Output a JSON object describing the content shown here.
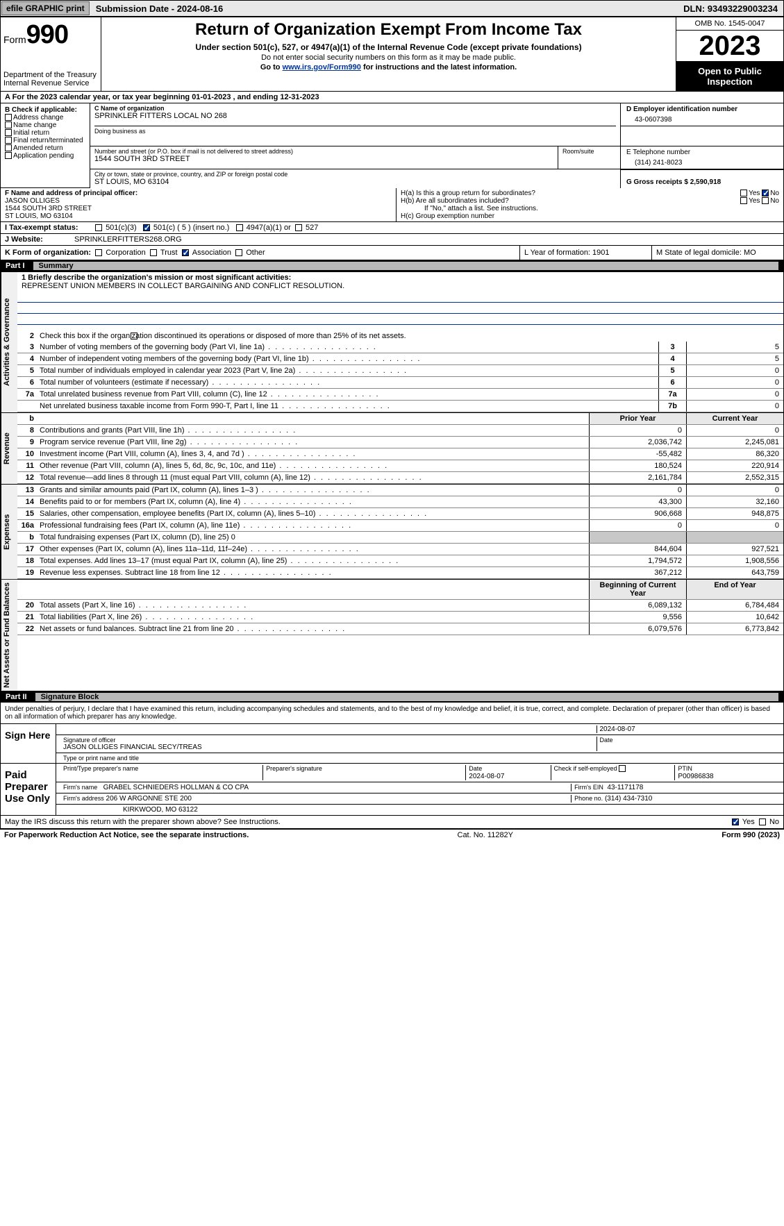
{
  "topbar": {
    "efile": "efile GRAPHIC print",
    "submission_label": "Submission Date - 2024-08-16",
    "dln_label": "DLN: 93493229003234"
  },
  "header": {
    "form_word": "Form",
    "form_number": "990",
    "dept": "Department of the Treasury",
    "irs": "Internal Revenue Service",
    "title": "Return of Organization Exempt From Income Tax",
    "subtitle": "Under section 501(c), 527, or 4947(a)(1) of the Internal Revenue Code (except private foundations)",
    "note1": "Do not enter social security numbers on this form as it may be made public.",
    "note2_pre": "Go to ",
    "note2_link": "www.irs.gov/Form990",
    "note2_post": " for instructions and the latest information.",
    "omb": "OMB No. 1545-0047",
    "year": "2023",
    "open": "Open to Public Inspection"
  },
  "section_a": "A For the 2023 calendar year, or tax year beginning 01-01-2023   , and ending 12-31-2023",
  "box_b": {
    "label": "B Check if applicable:",
    "items": [
      "Address change",
      "Name change",
      "Initial return",
      "Final return/terminated",
      "Amended return",
      "Application pending"
    ]
  },
  "box_c": {
    "name_label": "C Name of organization",
    "name": "SPRINKLER FITTERS LOCAL NO 268",
    "dba_label": "Doing business as",
    "street_label": "Number and street (or P.O. box if mail is not delivered to street address)",
    "room_label": "Room/suite",
    "street": "1544 SOUTH 3RD STREET",
    "city_label": "City or town, state or province, country, and ZIP or foreign postal code",
    "city": "ST LOUIS, MO  63104"
  },
  "box_d": {
    "label": "D Employer identification number",
    "value": "43-0607398"
  },
  "box_e": {
    "label": "E Telephone number",
    "value": "(314) 241-8023"
  },
  "box_g": {
    "label": "G Gross receipts $ 2,590,918"
  },
  "box_f": {
    "label": "F  Name and address of principal officer:",
    "line1": "JASON OLLIGES",
    "line2": "1544 SOUTH 3RD STREET",
    "line3": "ST LOUIS, MO  63104"
  },
  "box_h": {
    "ha": "H(a)  Is this a group return for subordinates?",
    "hb": "H(b)  Are all subordinates included?",
    "hb_note": "If \"No,\" attach a list. See instructions.",
    "hc": "H(c)  Group exemption number",
    "yes": "Yes",
    "no": "No"
  },
  "row_i": {
    "label": "I   Tax-exempt status:",
    "opt1": "501(c)(3)",
    "opt2": "501(c) ( 5 ) (insert no.)",
    "opt3": "4947(a)(1) or",
    "opt4": "527"
  },
  "row_j": {
    "label": "J   Website:",
    "value": "SPRINKLERFITTERS268.ORG"
  },
  "row_k": {
    "label": "K Form of organization:",
    "opts": [
      "Corporation",
      "Trust",
      "Association",
      "Other"
    ],
    "l_label": "L Year of formation: 1901",
    "m_label": "M State of legal domicile: MO"
  },
  "part1": {
    "num": "Part I",
    "title": "Summary"
  },
  "summary": {
    "side_labels": [
      "Activities & Governance",
      "Revenue",
      "Expenses",
      "Net Assets or Fund Balances"
    ],
    "line1_label": "1   Briefly describe the organization's mission or most significant activities:",
    "mission": "REPRESENT UNION MEMBERS IN COLLECT BARGAINING AND CONFLICT RESOLUTION.",
    "line2": "Check this box       if the organization discontinued its operations or disposed of more than 25% of its net assets.",
    "rows_gov": [
      {
        "n": "3",
        "t": "Number of voting members of the governing body (Part VI, line 1a)",
        "box": "3",
        "v": "5"
      },
      {
        "n": "4",
        "t": "Number of independent voting members of the governing body (Part VI, line 1b)",
        "box": "4",
        "v": "5"
      },
      {
        "n": "5",
        "t": "Total number of individuals employed in calendar year 2023 (Part V, line 2a)",
        "box": "5",
        "v": "0"
      },
      {
        "n": "6",
        "t": "Total number of volunteers (estimate if necessary)",
        "box": "6",
        "v": "0"
      },
      {
        "n": "7a",
        "t": "Total unrelated business revenue from Part VIII, column (C), line 12",
        "box": "7a",
        "v": "0"
      },
      {
        "n": "",
        "t": "Net unrelated business taxable income from Form 990-T, Part I, line 11",
        "box": "7b",
        "v": "0"
      }
    ],
    "col_headers": {
      "b": "b",
      "prior": "Prior Year",
      "current": "Current Year"
    },
    "rows_rev": [
      {
        "n": "8",
        "t": "Contributions and grants (Part VIII, line 1h)",
        "p": "0",
        "c": "0"
      },
      {
        "n": "9",
        "t": "Program service revenue (Part VIII, line 2g)",
        "p": "2,036,742",
        "c": "2,245,081"
      },
      {
        "n": "10",
        "t": "Investment income (Part VIII, column (A), lines 3, 4, and 7d )",
        "p": "-55,482",
        "c": "86,320"
      },
      {
        "n": "11",
        "t": "Other revenue (Part VIII, column (A), lines 5, 6d, 8c, 9c, 10c, and 11e)",
        "p": "180,524",
        "c": "220,914"
      },
      {
        "n": "12",
        "t": "Total revenue—add lines 8 through 11 (must equal Part VIII, column (A), line 12)",
        "p": "2,161,784",
        "c": "2,552,315"
      }
    ],
    "rows_exp": [
      {
        "n": "13",
        "t": "Grants and similar amounts paid (Part IX, column (A), lines 1–3 )",
        "p": "0",
        "c": "0"
      },
      {
        "n": "14",
        "t": "Benefits paid to or for members (Part IX, column (A), line 4)",
        "p": "43,300",
        "c": "32,160"
      },
      {
        "n": "15",
        "t": "Salaries, other compensation, employee benefits (Part IX, column (A), lines 5–10)",
        "p": "906,668",
        "c": "948,875"
      },
      {
        "n": "16a",
        "t": "Professional fundraising fees (Part IX, column (A), line 11e)",
        "p": "0",
        "c": "0"
      },
      {
        "n": "b",
        "t": "Total fundraising expenses (Part IX, column (D), line 25) 0",
        "p": "",
        "c": "",
        "shaded": true
      },
      {
        "n": "17",
        "t": "Other expenses (Part IX, column (A), lines 11a–11d, 11f–24e)",
        "p": "844,604",
        "c": "927,521"
      },
      {
        "n": "18",
        "t": "Total expenses. Add lines 13–17 (must equal Part IX, column (A), line 25)",
        "p": "1,794,572",
        "c": "1,908,556"
      },
      {
        "n": "19",
        "t": "Revenue less expenses. Subtract line 18 from line 12",
        "p": "367,212",
        "c": "643,759"
      }
    ],
    "net_headers": {
      "begin": "Beginning of Current Year",
      "end": "End of Year"
    },
    "rows_net": [
      {
        "n": "20",
        "t": "Total assets (Part X, line 16)",
        "p": "6,089,132",
        "c": "6,784,484"
      },
      {
        "n": "21",
        "t": "Total liabilities (Part X, line 26)",
        "p": "9,556",
        "c": "10,642"
      },
      {
        "n": "22",
        "t": "Net assets or fund balances. Subtract line 21 from line 20",
        "p": "6,079,576",
        "c": "6,773,842"
      }
    ]
  },
  "part2": {
    "num": "Part II",
    "title": "Signature Block"
  },
  "sig": {
    "intro": "Under penalties of perjury, I declare that I have examined this return, including accompanying schedules and statements, and to the best of my knowledge and belief, it is true, correct, and complete. Declaration of preparer (other than officer) is based on all information of which preparer has any knowledge.",
    "sign_here": "Sign Here",
    "sig_officer": "Signature of officer",
    "officer_name": "JASON OLLIGES  FINANCIAL SECY/TREAS",
    "type_name": "Type or print name and title",
    "date1": "2024-08-07",
    "date_label": "Date",
    "paid": "Paid Preparer Use Only",
    "print_name_label": "Print/Type preparer's name",
    "prep_sig_label": "Preparer's signature",
    "date2": "2024-08-07",
    "check_self": "Check        if self-employed",
    "ptin_label": "PTIN",
    "ptin": "P00986838",
    "firm_name_label": "Firm's name",
    "firm_name": "GRABEL SCHNIEDERS HOLLMAN & CO CPA",
    "firm_ein_label": "Firm's EIN",
    "firm_ein": "43-1171178",
    "firm_addr_label": "Firm's address",
    "firm_addr1": "206 W ARGONNE STE 200",
    "firm_addr2": "KIRKWOOD, MO  63122",
    "phone_label": "Phone no.",
    "phone": "(314) 434-7310",
    "discuss": "May the IRS discuss this return with the preparer shown above? See Instructions."
  },
  "footer": {
    "left": "For Paperwork Reduction Act Notice, see the separate instructions.",
    "mid": "Cat. No. 11282Y",
    "right": "Form 990 (2023)"
  }
}
